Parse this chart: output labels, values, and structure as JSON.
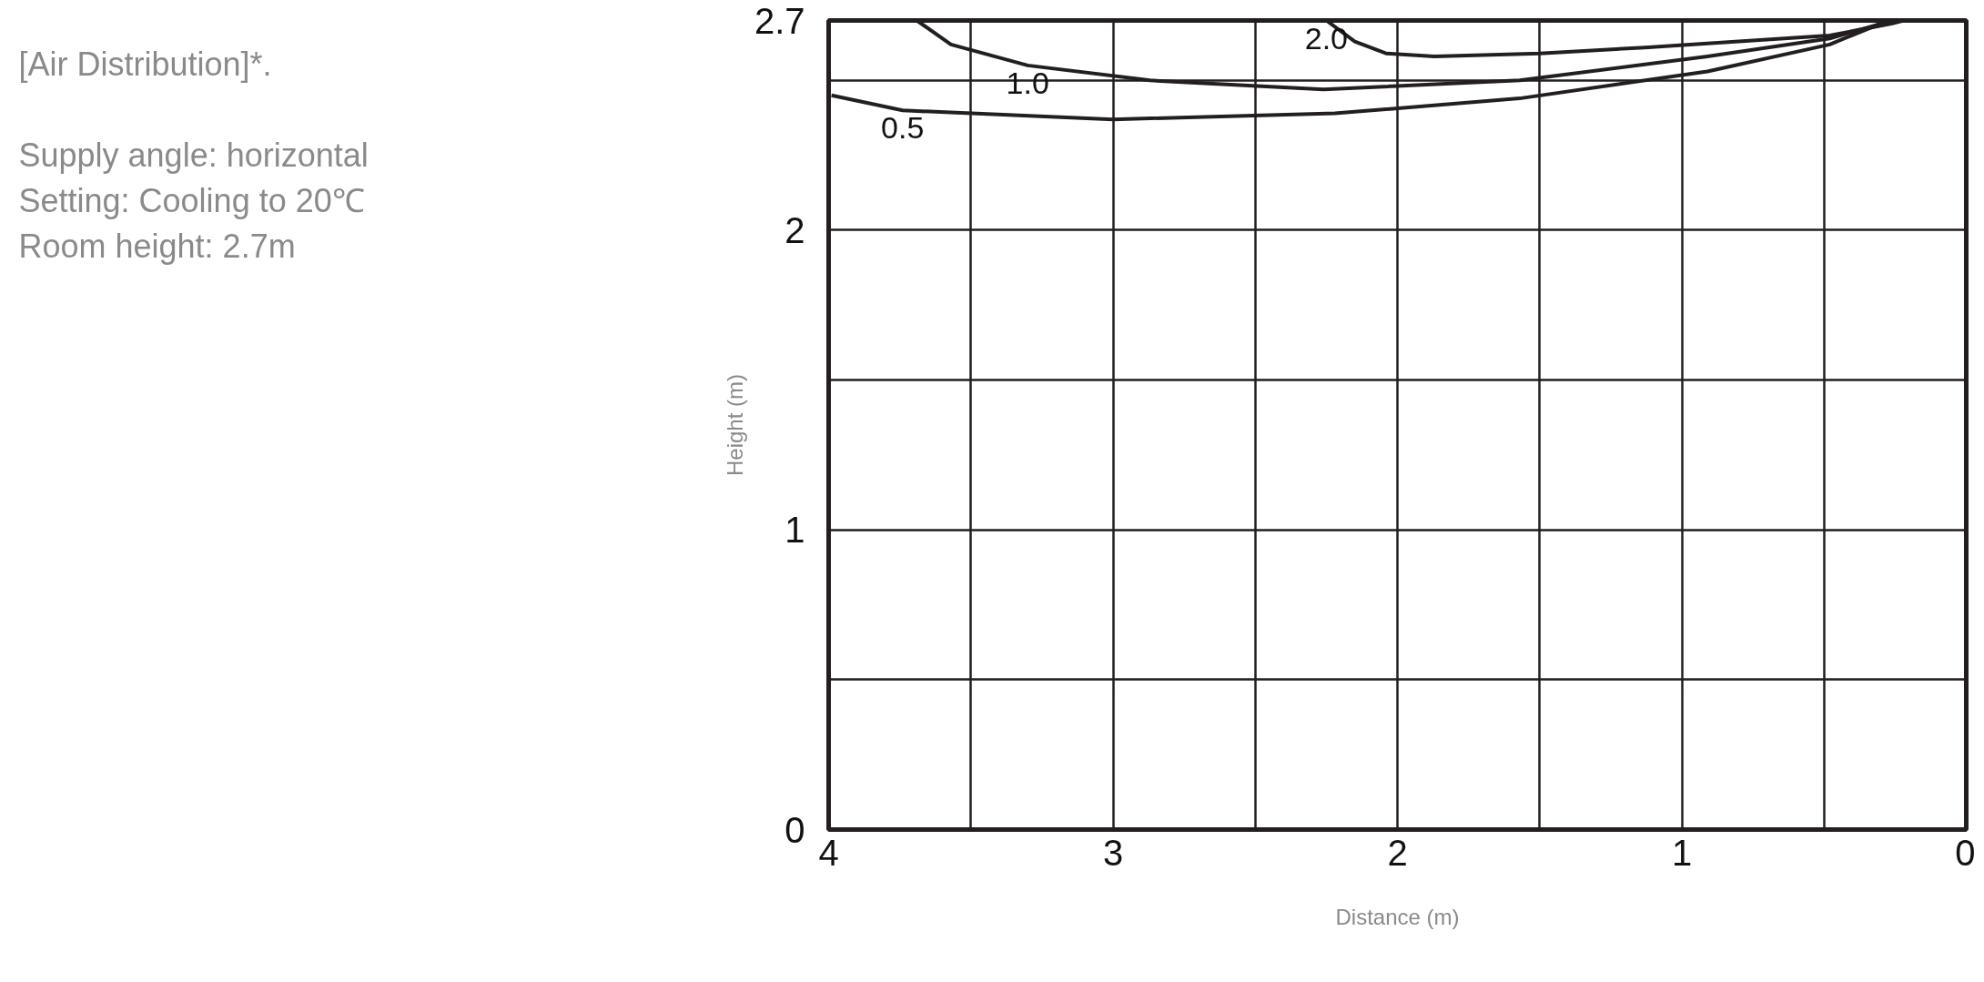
{
  "chart_data": {
    "type": "line",
    "title": "[Air Distribution]*.",
    "xlabel": "Distance (m)",
    "ylabel": "Height (m)",
    "annotations": [
      "Supply angle: horizontal",
      "Setting: Cooling to 20℃",
      "Room height: 2.7m",
      {
        "text": "2.0",
        "x": 2.25,
        "y": 2.7
      },
      {
        "text": "1.0",
        "x": 3.3,
        "y": 2.55
      },
      {
        "text": "0.5",
        "x": 3.74,
        "y": 2.4
      }
    ],
    "series": [
      {
        "color": "#231f20",
        "x": [
          2.25,
          2.15,
          2.04,
          1.87,
          1.5,
          1.13,
          0.8,
          0.48,
          0.26,
          0.22
        ],
        "values": [
          2.7,
          2.63,
          2.59,
          2.58,
          2.59,
          2.61,
          2.63,
          2.65,
          2.69,
          2.7
        ]
      },
      {
        "color": "#231f20",
        "x": [
          3.69,
          3.57,
          3.3,
          2.87,
          2.26,
          1.57,
          0.91,
          0.48,
          0.26
        ],
        "values": [
          2.7,
          2.62,
          2.55,
          2.5,
          2.47,
          2.5,
          2.58,
          2.64,
          2.7
        ]
      },
      {
        "color": "#231f20",
        "x": [
          3.99,
          3.74,
          3.0,
          2.22,
          1.57,
          0.91,
          0.48,
          0.3,
          0.26
        ],
        "values": [
          2.45,
          2.4,
          2.37,
          2.39,
          2.44,
          2.53,
          2.62,
          2.69,
          2.7
        ]
      }
    ],
    "xlim": [
      4,
      0
    ],
    "ylim": [
      0,
      2.7
    ],
    "xticks": [
      4,
      {
        "value": 3.5,
        "label": null
      },
      3,
      {
        "value": 2.5,
        "label": null
      },
      2,
      {
        "value": 1.5,
        "label": null
      },
      1,
      {
        "value": 0.5,
        "label": null
      },
      0
    ],
    "yticks": [
      0,
      {
        "value": 0.5,
        "label": null
      },
      1,
      {
        "value": 1.5,
        "label": null
      },
      2,
      {
        "value": 2.5,
        "label": null
      },
      2.7
    ],
    "grid": true,
    "marker": "none",
    "line_style": "solid"
  }
}
